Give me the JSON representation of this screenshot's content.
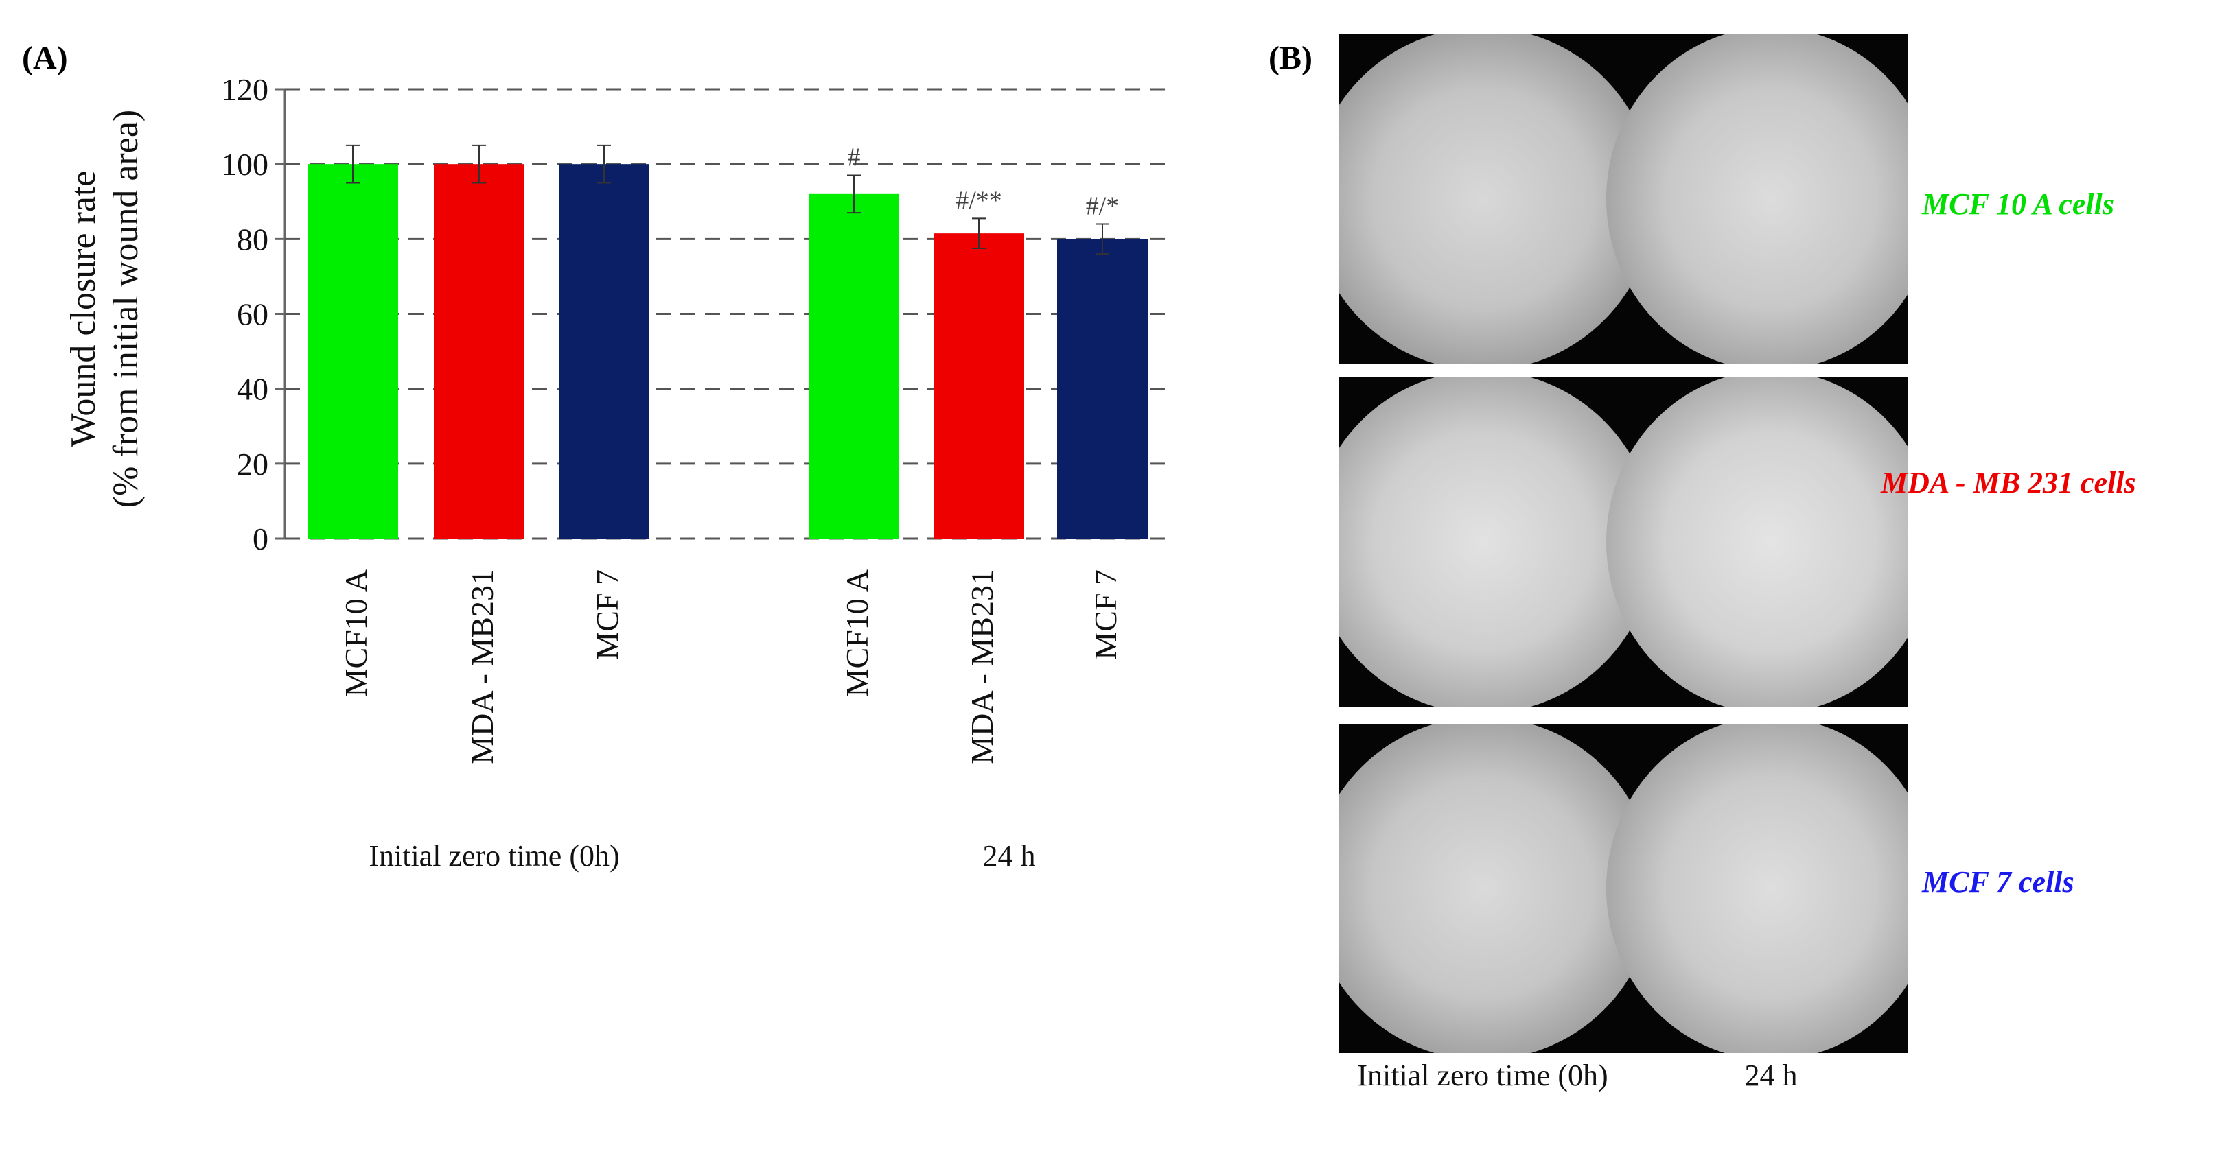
{
  "panels": {
    "a_label": "(A)",
    "b_label": "(B)"
  },
  "chart_data": {
    "type": "bar",
    "ylabel_line1": "Wound closure rate",
    "ylabel_line2": "(% from initial wound area)",
    "ylim": [
      0,
      120
    ],
    "yticks": [
      0,
      20,
      40,
      60,
      80,
      100,
      120
    ],
    "grid": "dashed horizontal",
    "groups": [
      {
        "label": "Initial zero time (0h)",
        "bars": [
          {
            "category": "MCF10 A",
            "value": 100,
            "error": 5,
            "color": "#00ee00",
            "annotation": ""
          },
          {
            "category": "MDA - MB231",
            "value": 100,
            "error": 5,
            "color": "#ee0000",
            "annotation": ""
          },
          {
            "category": "MCF 7",
            "value": 100,
            "error": 5,
            "color": "#0a1f66",
            "annotation": ""
          }
        ]
      },
      {
        "label": "24 h",
        "bars": [
          {
            "category": "MCF10 A",
            "value": 92,
            "error": 5,
            "color": "#00ee00",
            "annotation": "#"
          },
          {
            "category": "MDA - MB231",
            "value": 81.5,
            "error": 4,
            "color": "#ee0000",
            "annotation": "#/**"
          },
          {
            "category": "MCF 7",
            "value": 80,
            "error": 4,
            "color": "#0a1f66",
            "annotation": "#/*"
          }
        ]
      }
    ]
  },
  "micrographs": {
    "rows": [
      {
        "label": "MCF 10 A cells",
        "color": "#00dd00"
      },
      {
        "label": "MDA - MB 231 cells",
        "color": "#ee0000"
      },
      {
        "label": "MCF 7 cells",
        "color": "#1a1aee"
      }
    ],
    "col_labels": [
      "Initial zero time (0h)",
      "24 h"
    ]
  }
}
